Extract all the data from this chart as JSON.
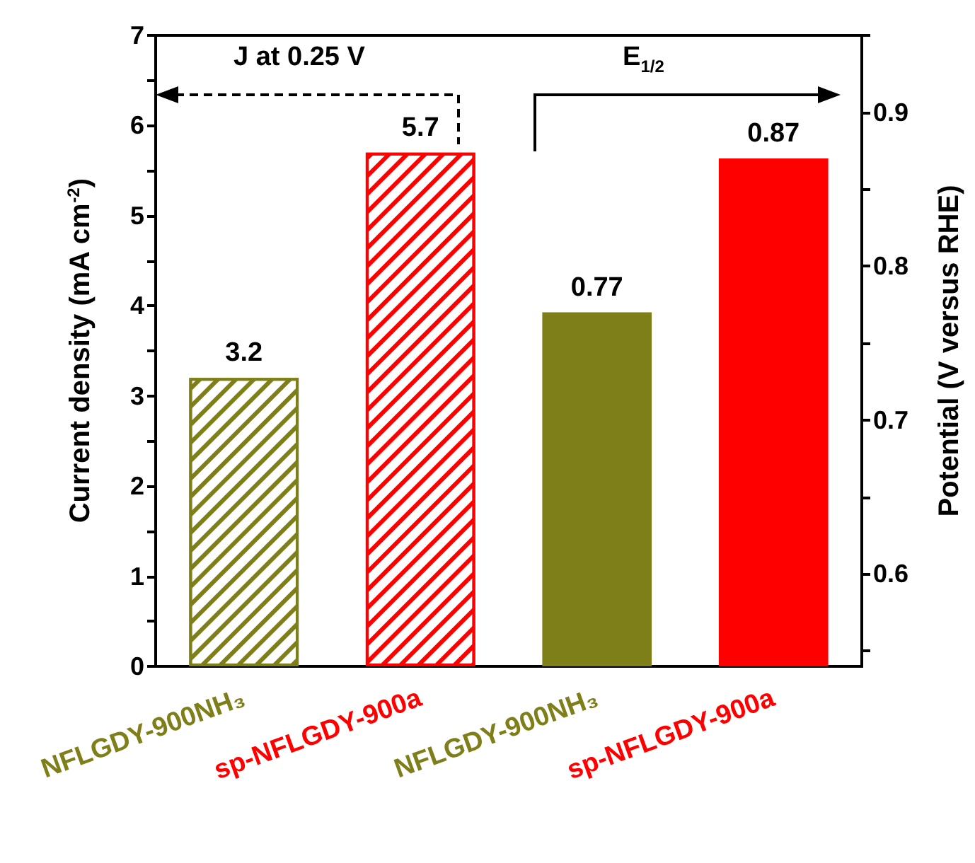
{
  "chart_data": {
    "type": "bar",
    "ylabel": "Current density (mA cm$^{-2}$)",
    "y2label": "Potential (V versus RHE)",
    "categories": [
      "NFLGDY-900NH₃",
      "sp-NFLGDY-900a",
      "NFLGDY-900NH₃",
      "sp-NFLGDY-900a"
    ],
    "series": [
      {
        "colors": [
          "#7f7f1a",
          "#ff0000",
          "#7f7f1a",
          "#ff0000"
        ],
        "values": [
          3.2,
          5.7,
          null,
          null
        ]
      },
      {
        "colors": [
          "#7f7f1a",
          "#ff0000",
          "#7f7f1a",
          "#ff0000"
        ],
        "values": [
          null,
          null,
          0.77,
          0.87
        ],
        "axis": "y2"
      }
    ],
    "ylim": [
      0,
      7
    ],
    "yticks": [
      0,
      {
        "value": 0.5,
        "label": null
      },
      1,
      {
        "value": 1.5,
        "label": null
      },
      2,
      {
        "value": 2.5,
        "label": null
      },
      3,
      {
        "value": 3.5,
        "label": null
      },
      4,
      {
        "value": 4.5,
        "label": null
      },
      5,
      {
        "value": 5.5,
        "label": null
      },
      6,
      {
        "value": 6.5,
        "label": null
      },
      7
    ],
    "y2lim": [
      0.54,
      0.95
    ],
    "y2ticks": [
      {
        "value": 0.55,
        "label": null
      },
      0.6,
      {
        "value": 0.65,
        "label": null
      },
      0.7,
      {
        "value": 0.75,
        "label": null
      },
      0.8,
      {
        "value": 0.85,
        "label": null
      },
      0.9,
      {
        "value": 0.95,
        "label": null
      }
    ],
    "annotations": [
      "J at 0.25 V",
      "E$_{1/2}$"
    ],
    "data_labels": true,
    "grid": false
  }
}
